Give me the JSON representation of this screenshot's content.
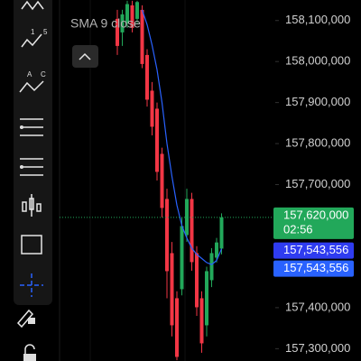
{
  "chart_data": {
    "type": "candlestick",
    "up_color": "#22a85a",
    "down_color": "#f23645",
    "open": [
      158104000,
      158071000,
      158093000,
      158137000,
      158104000,
      158126000,
      158016000,
      157929000,
      157885000,
      157775000,
      157665000,
      157533000,
      157423000,
      157445000,
      157577000,
      157665000,
      157533000,
      157423000,
      157357000,
      157467000,
      157522000,
      157544000
    ],
    "high": [
      158126000,
      158126000,
      158148000,
      158148000,
      158148000,
      158137000,
      158030000,
      157950000,
      157900000,
      157790000,
      157690000,
      157560000,
      157440000,
      157620000,
      157690000,
      157680000,
      157550000,
      157440000,
      157500000,
      157545000,
      157570000,
      157630000
    ],
    "low": [
      158016000,
      158038000,
      158082000,
      158071000,
      158093000,
      157984000,
      157890000,
      157820000,
      157710000,
      157620000,
      157423000,
      157330000,
      157272000,
      157430000,
      157560000,
      157490000,
      157380000,
      157290000,
      157330000,
      157450000,
      157510000,
      157530000
    ],
    "close": [
      158038000,
      158115000,
      158140000,
      158082000,
      158145000,
      157994000,
      157907000,
      157841000,
      157731000,
      157643000,
      157489000,
      157357000,
      157280000,
      157599000,
      157665000,
      157511000,
      157401000,
      157313000,
      157489000,
      157533000,
      157559000,
      157620000
    ],
    "sma": {
      "name": "SMA 9 close",
      "color": "#2962ff",
      "values": [
        null,
        null,
        null,
        null,
        null,
        158126000,
        158090000,
        158040000,
        157980000,
        157900000,
        157800000,
        157720000,
        157650000,
        157600000,
        157570000,
        157545000,
        157530000,
        157520000,
        157510000,
        157505000,
        157515000,
        157543556
      ]
    },
    "ylim": [
      157270000,
      158150000
    ],
    "yticks": [
      {
        "value": 157300000,
        "label": "157,300,000"
      },
      {
        "value": 157400000,
        "label": "157,400,000"
      },
      {
        "value": 157700000,
        "label": "157,700,000"
      },
      {
        "value": 157800000,
        "label": "157,800,000"
      },
      {
        "value": 157900000,
        "label": "157,900,000"
      },
      {
        "value": 158000000,
        "label": "158,000,000"
      },
      {
        "value": 158100000,
        "label": "158,100,000"
      }
    ],
    "last_price": {
      "value": 157620000,
      "label": "157,620,000",
      "countdown": "02:56",
      "color": "#22a85a"
    },
    "sma_labels": [
      {
        "value": 157543556,
        "label": "157,543,556",
        "color": "#2f3cf0"
      },
      {
        "value": 157543556,
        "label": "157,543,556",
        "color": "#2962ff"
      }
    ]
  }
}
